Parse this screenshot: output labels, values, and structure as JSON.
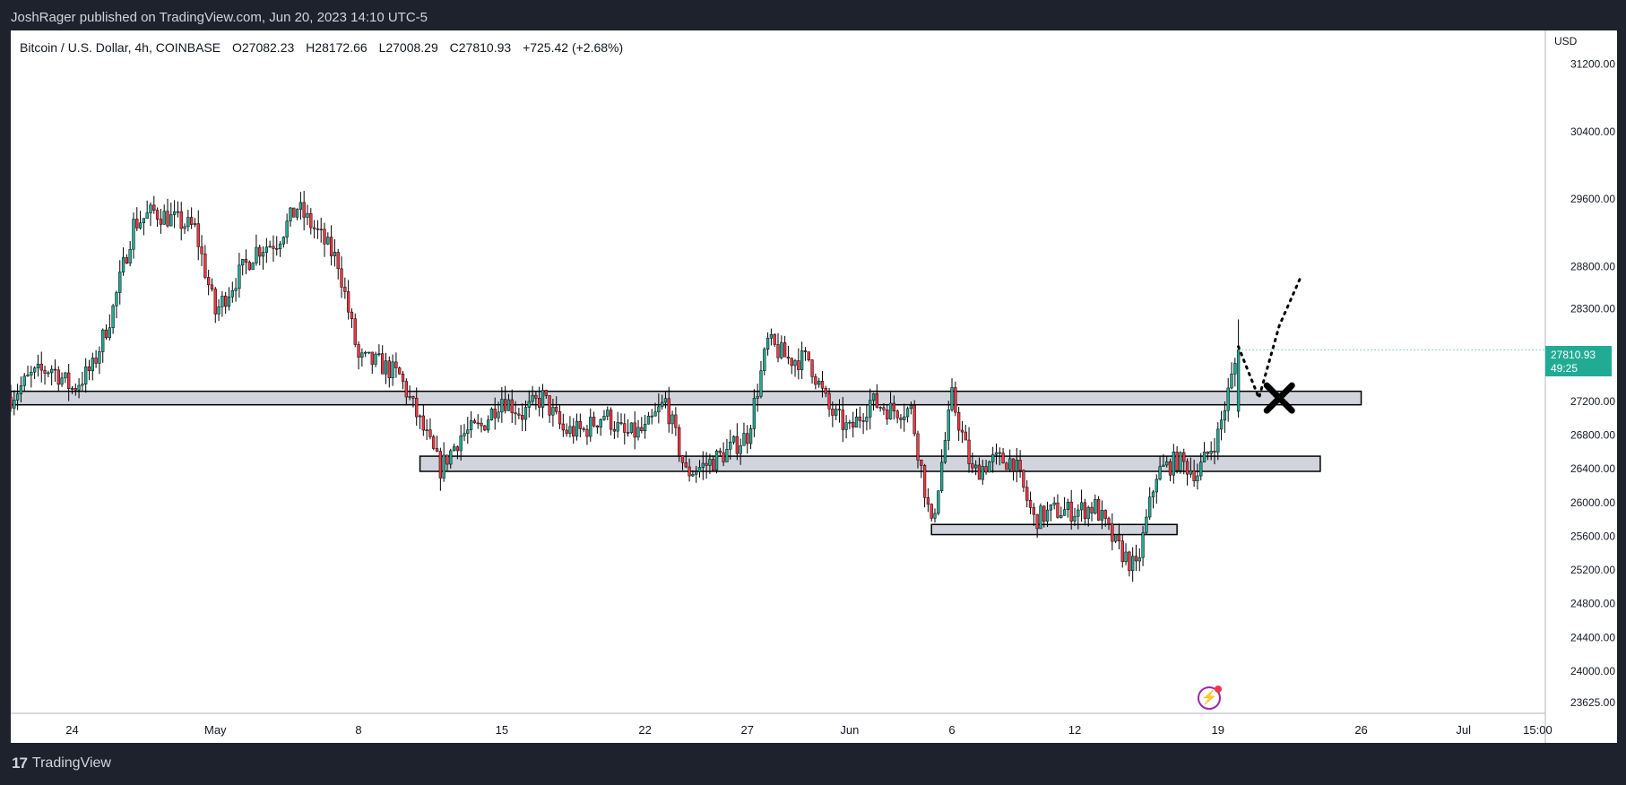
{
  "publisher": {
    "line": "JoshRager published on TradingView.com, Jun 20, 2023 14:10 UTC-5"
  },
  "symbol_header": {
    "name": "Bitcoin / U.S. Dollar, 4h, COINBASE",
    "open": "O27082.23",
    "high": "H28172.66",
    "low": "L27008.29",
    "close": "C27810.93",
    "change": "+725.42 (+2.68%)"
  },
  "price_scale": {
    "currency": "USD",
    "last_price": "27810.93",
    "countdown": "49:25"
  },
  "branding": {
    "logo_mark": "17",
    "logo_text": "TradingView"
  },
  "colors": {
    "up": "#22ab94",
    "down": "#f23645",
    "background": "#ffffff",
    "frame": "#1e222d",
    "zone_fill": "#d1d4dc",
    "last_price_tag": "#22ab94",
    "bolt_badge": "#9c27b0"
  },
  "icons": [
    "tradingview-logo-icon",
    "lightning-bolt-icon",
    "x-mark-icon"
  ],
  "chart_data": {
    "type": "candlestick",
    "title": "Bitcoin / U.S. Dollar, 4h, COINBASE",
    "timeframe": "4h",
    "exchange": "COINBASE",
    "y_ticks": [
      31200,
      30400,
      29600,
      28800,
      28300,
      27200,
      26800,
      26400,
      26000,
      25600,
      25200,
      24800,
      24400,
      24000,
      23625
    ],
    "y_axis_label": "USD",
    "x_tick_labels": [
      "24",
      "May",
      "8",
      "15",
      "22",
      "27",
      "Jun",
      "6",
      "12",
      "19",
      "26",
      "Jul",
      "15:00"
    ],
    "x_ticks_dates": [
      "2023-04-24",
      "2023-05-01",
      "2023-05-08",
      "2023-05-15",
      "2023-05-22",
      "2023-05-27",
      "2023-06-01",
      "2023-06-06",
      "2023-06-12",
      "2023-06-19",
      "2023-06-26",
      "2023-07-01",
      "2023-07-04 15:00"
    ],
    "ylim": [
      23500,
      31600
    ],
    "close_path": [
      [
        "2023-04-21",
        27250
      ],
      [
        "2023-04-22",
        27500
      ],
      [
        "2023-04-23",
        27600
      ],
      [
        "2023-04-24",
        27350
      ],
      [
        "2023-04-25",
        27600
      ],
      [
        "2023-04-26",
        28300
      ],
      [
        "2023-04-27",
        29300
      ],
      [
        "2023-04-28",
        29450
      ],
      [
        "2023-04-29",
        29350
      ],
      [
        "2023-04-30",
        29250
      ],
      [
        "2023-05-01",
        28250
      ],
      [
        "2023-05-02",
        28650
      ],
      [
        "2023-05-03",
        29000
      ],
      [
        "2023-05-04",
        29100
      ],
      [
        "2023-05-05",
        29500
      ],
      [
        "2023-05-06",
        29200
      ],
      [
        "2023-05-07",
        28850
      ],
      [
        "2023-05-08",
        27700
      ],
      [
        "2023-05-09",
        27650
      ],
      [
        "2023-05-10",
        27500
      ],
      [
        "2023-05-11",
        26950
      ],
      [
        "2023-05-12",
        26400
      ],
      [
        "2023-05-13",
        26800
      ],
      [
        "2023-05-14",
        26900
      ],
      [
        "2023-05-15",
        27250
      ],
      [
        "2023-05-16",
        27050
      ],
      [
        "2023-05-17",
        27250
      ],
      [
        "2023-05-18",
        26850
      ],
      [
        "2023-05-19",
        26850
      ],
      [
        "2023-05-20",
        27050
      ],
      [
        "2023-05-21",
        26800
      ],
      [
        "2023-05-22",
        26850
      ],
      [
        "2023-05-23",
        27200
      ],
      [
        "2023-05-24",
        26350
      ],
      [
        "2023-05-25",
        26450
      ],
      [
        "2023-05-26",
        26600
      ],
      [
        "2023-05-27",
        26800
      ],
      [
        "2023-05-28",
        27900
      ],
      [
        "2023-05-29",
        27700
      ],
      [
        "2023-05-30",
        27700
      ],
      [
        "2023-05-31",
        27100
      ],
      [
        "2023-06-01",
        26850
      ],
      [
        "2023-06-02",
        27200
      ],
      [
        "2023-06-03",
        27100
      ],
      [
        "2023-06-04",
        27100
      ],
      [
        "2023-06-05",
        25700
      ],
      [
        "2023-06-06",
        27250
      ],
      [
        "2023-06-07",
        26350
      ],
      [
        "2023-06-08",
        26500
      ],
      [
        "2023-06-09",
        26500
      ],
      [
        "2023-06-10",
        25800
      ],
      [
        "2023-06-11",
        25900
      ],
      [
        "2023-06-12",
        25900
      ],
      [
        "2023-06-13",
        25950
      ],
      [
        "2023-06-14",
        25500
      ],
      [
        "2023-06-15",
        25200
      ],
      [
        "2023-06-16",
        26350
      ],
      [
        "2023-06-17",
        26500
      ],
      [
        "2023-06-18",
        26350
      ],
      [
        "2023-06-19",
        26800
      ],
      [
        "2023-06-20",
        27810.93
      ]
    ],
    "zones": [
      {
        "from": "2023-04-21",
        "to": "2023-06-26",
        "low": 27160,
        "high": 27320
      },
      {
        "from": "2023-05-11",
        "to": "2023-06-24",
        "low": 26370,
        "high": 26550
      },
      {
        "from": "2023-06-05",
        "to": "2023-06-17",
        "low": 25620,
        "high": 25740
      }
    ],
    "annotations": [
      {
        "type": "dotted-path",
        "points": [
          [
            "2023-06-20",
            27850
          ],
          [
            "2023-06-21",
            27240
          ],
          [
            "2023-06-22",
            28100
          ],
          [
            "2023-06-23",
            28650
          ]
        ]
      },
      {
        "type": "x-mark",
        "at": [
          "2023-06-22",
          27240
        ]
      },
      {
        "type": "lightning-badge",
        "at": "2023-06-19"
      }
    ],
    "last": {
      "open": 27082.23,
      "high": 28172.66,
      "low": 27008.29,
      "close": 27810.93,
      "change": 725.42,
      "change_pct": 2.68
    },
    "grid": false,
    "legend": "top-left"
  }
}
